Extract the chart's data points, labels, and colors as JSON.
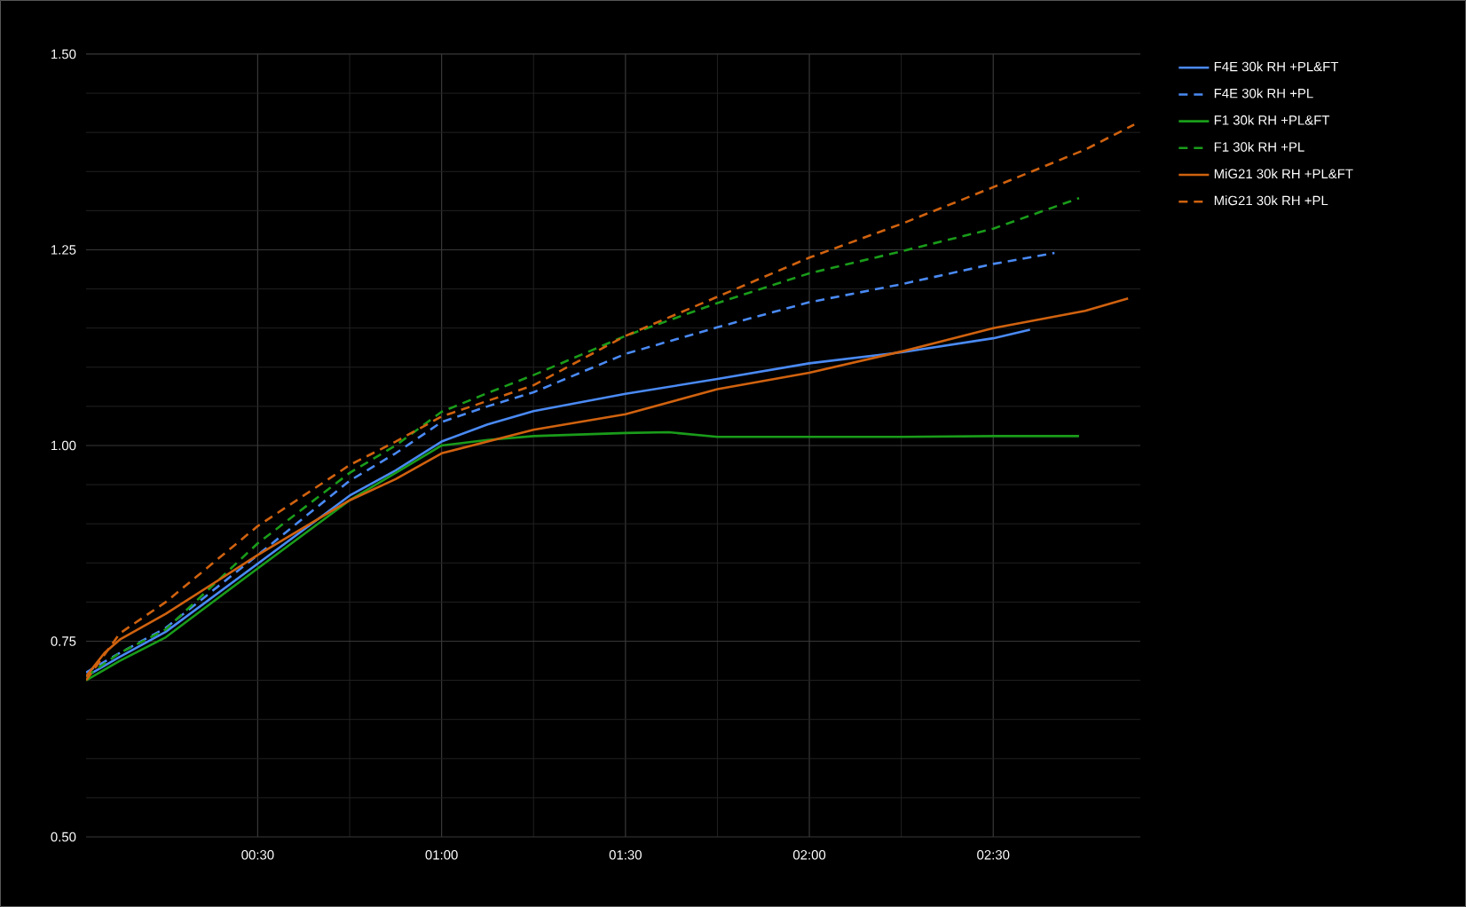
{
  "chart_data": {
    "type": "line",
    "series": [
      {
        "name": "F4E 30k RH +PL&FT",
        "color": "#4a8af4",
        "line_style": "solid",
        "x": [
          2,
          7.5,
          15,
          30,
          45,
          52.5,
          60,
          67.5,
          75,
          90,
          105,
          120,
          135,
          150,
          156
        ],
        "values": [
          0.705,
          0.73,
          0.762,
          0.849,
          0.936,
          0.968,
          1.005,
          1.027,
          1.044,
          1.066,
          1.085,
          1.105,
          1.119,
          1.137,
          1.148
        ]
      },
      {
        "name": "F4E 30k RH +PL",
        "color": "#4a8af4",
        "line_style": "dashed",
        "x": [
          2,
          7.5,
          15,
          30,
          45,
          52.5,
          60,
          67.5,
          75,
          90,
          105,
          120,
          135,
          150,
          160
        ],
        "values": [
          0.71,
          0.735,
          0.767,
          0.86,
          0.955,
          0.99,
          1.03,
          1.05,
          1.068,
          1.117,
          1.151,
          1.183,
          1.206,
          1.232,
          1.246
        ]
      },
      {
        "name": "F1 30k RH +PL&FT",
        "color": "#1a9c1a",
        "line_style": "solid",
        "x": [
          2,
          7.5,
          15,
          30,
          45,
          52.5,
          60,
          67.5,
          75,
          90,
          97,
          105,
          120,
          135,
          150,
          164
        ],
        "values": [
          0.7,
          0.725,
          0.755,
          0.843,
          0.93,
          0.965,
          1.0,
          1.007,
          1.012,
          1.016,
          1.017,
          1.011,
          1.011,
          1.011,
          1.012,
          1.012
        ]
      },
      {
        "name": "F1 30k RH +PL",
        "color": "#1a9c1a",
        "line_style": "dashed",
        "x": [
          2,
          7.5,
          15,
          30,
          45,
          52.5,
          60,
          67.5,
          75,
          90,
          105,
          120,
          135,
          150,
          164
        ],
        "values": [
          0.705,
          0.735,
          0.765,
          0.875,
          0.965,
          1.0,
          1.043,
          1.067,
          1.09,
          1.14,
          1.182,
          1.22,
          1.248,
          1.277,
          1.316
        ]
      },
      {
        "name": "MiG21 30k RH +PL&FT",
        "color": "#d0620f",
        "line_style": "solid",
        "x": [
          2,
          5,
          7.5,
          15,
          30,
          45,
          52.5,
          60,
          75,
          90,
          105,
          120,
          135,
          150,
          165,
          172
        ],
        "values": [
          0.705,
          0.735,
          0.752,
          0.785,
          0.86,
          0.93,
          0.957,
          0.99,
          1.02,
          1.04,
          1.072,
          1.093,
          1.12,
          1.15,
          1.172,
          1.188
        ]
      },
      {
        "name": "MiG21 30k RH +PL",
        "color": "#d0620f",
        "line_style": "dashed",
        "x": [
          2,
          7.5,
          15,
          30,
          45,
          52.5,
          60,
          75,
          90,
          105,
          120,
          135,
          150,
          165,
          173
        ],
        "values": [
          0.7,
          0.76,
          0.8,
          0.897,
          0.975,
          1.005,
          1.037,
          1.077,
          1.14,
          1.19,
          1.24,
          1.283,
          1.33,
          1.378,
          1.41
        ]
      }
    ],
    "xlim": [
      2,
      174
    ],
    "xticks": [
      {
        "value": 30,
        "label": "00:30"
      },
      {
        "value": 60,
        "label": "01:00"
      },
      {
        "value": 90,
        "label": "01:30"
      },
      {
        "value": 120,
        "label": "02:00"
      },
      {
        "value": 150,
        "label": "02:30"
      }
    ],
    "ylim": [
      0.5,
      1.5
    ],
    "yticks": [
      {
        "value": 0.5,
        "label": "0.50"
      },
      {
        "value": 0.75,
        "label": "0.75"
      },
      {
        "value": 1.0,
        "label": "1.00"
      },
      {
        "value": 1.25,
        "label": "1.25"
      },
      {
        "value": 1.5,
        "label": "1.50"
      }
    ],
    "grid": true,
    "legend": "top right",
    "marker": "none"
  }
}
